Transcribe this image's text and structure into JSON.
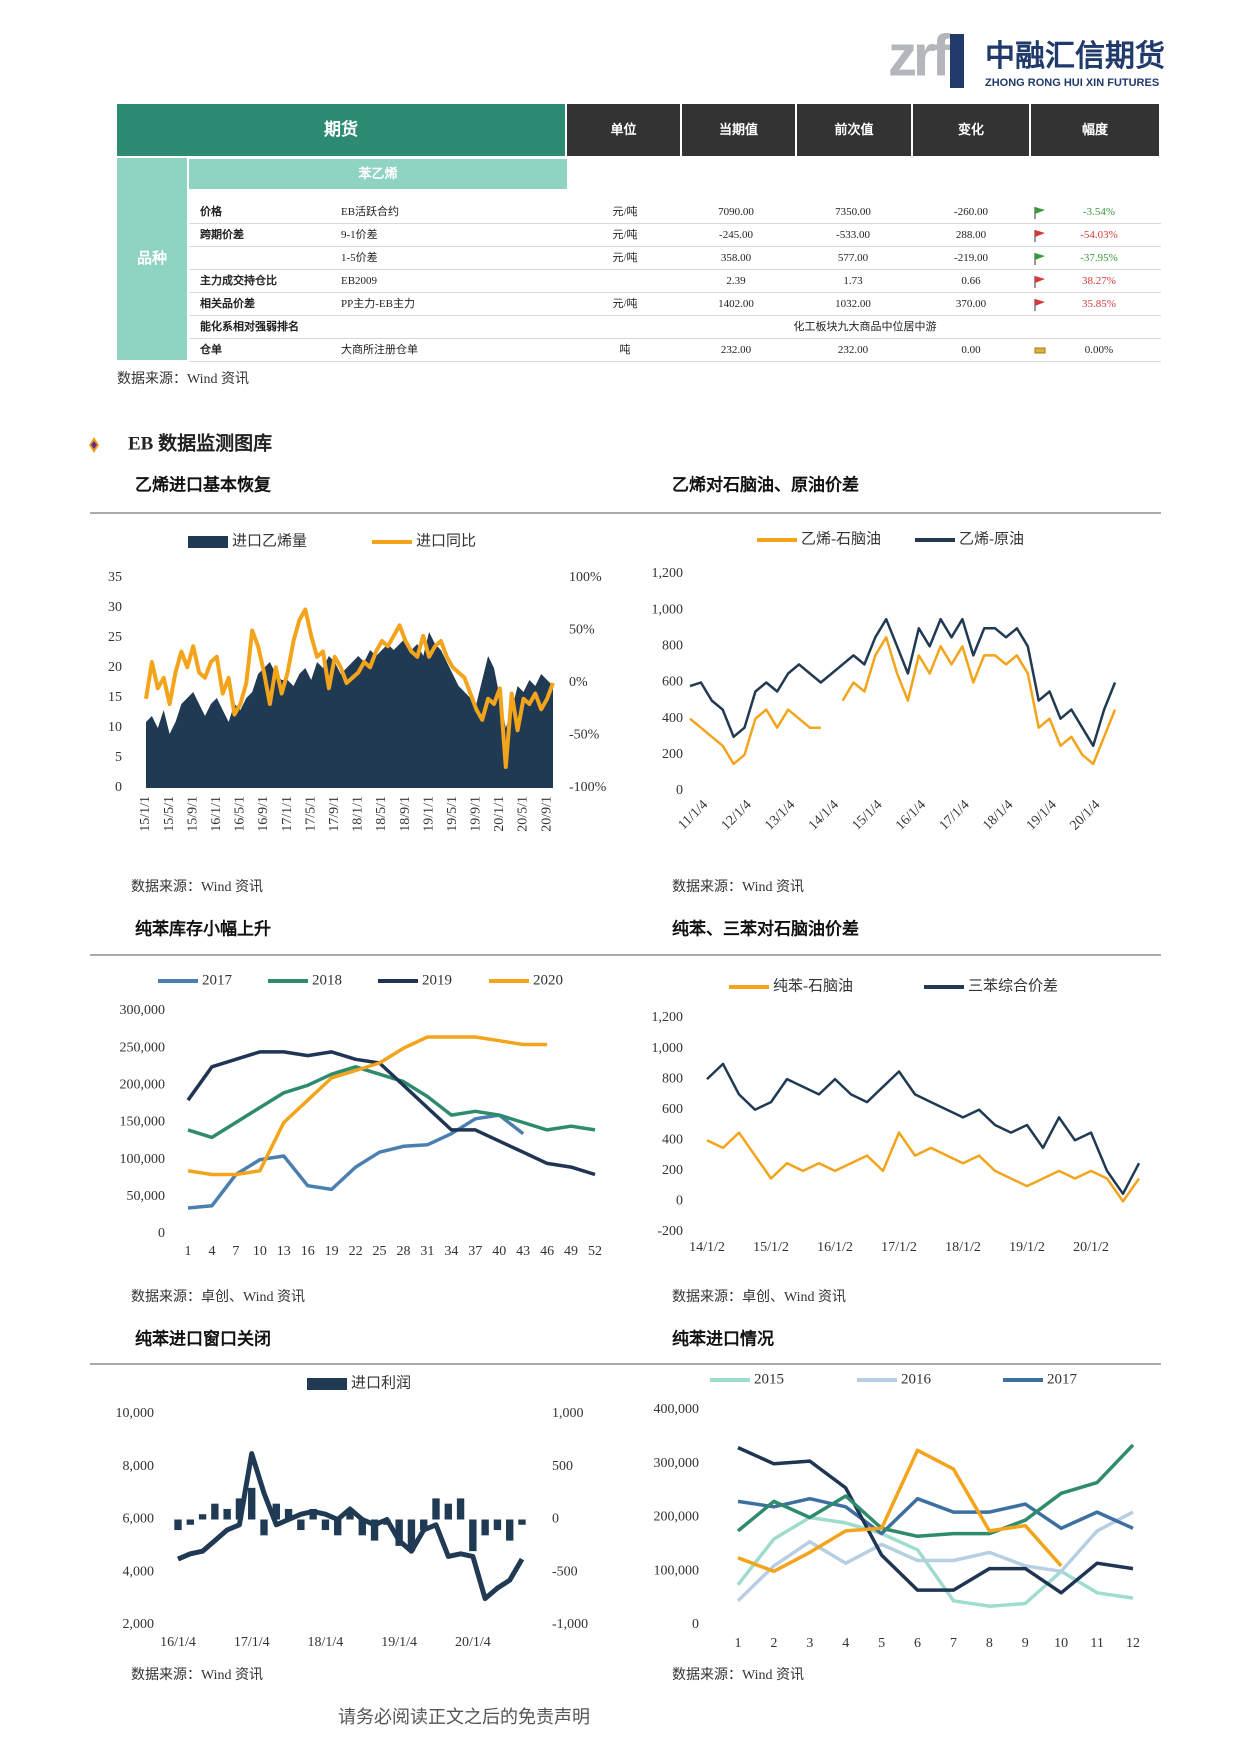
{
  "logo": {
    "mark": "zrf",
    "name": "中融汇信期货",
    "english": "ZHONG RONG HUI XIN FUTURES"
  },
  "table": {
    "header": [
      "期货",
      "单位",
      "当期值",
      "前次值",
      "变化",
      "幅度"
    ],
    "group": "品种",
    "product": "苯乙烯",
    "rows": [
      {
        "label": "价格",
        "item": "EB活跃合约",
        "unit": "元/吨",
        "current": "7090.00",
        "previous": "7350.00",
        "change": "-260.00",
        "pct": "-3.54%"
      },
      {
        "label": "跨期价差",
        "item": "9-1价差",
        "unit": "元/吨",
        "current": "-245.00",
        "previous": "-533.00",
        "change": "288.00",
        "pct": "-54.03%"
      },
      {
        "item": "1-5价差",
        "unit": "元/吨",
        "current": "358.00",
        "previous": "577.00",
        "change": "-219.00",
        "pct": "-37.95%"
      },
      {
        "label": "主力成交持仓比",
        "item": "EB2009",
        "current": "2.39",
        "previous": "1.73",
        "change": "0.66",
        "pct": "38.27%"
      },
      {
        "label": "相关品价差",
        "item": "PP主力-EB主力",
        "unit": "元/吨",
        "current": "1402.00",
        "previous": "1032.00",
        "change": "370.00",
        "pct": "35.85%"
      },
      {
        "label": "能化系相对强弱排名",
        "note": "化工板块九大商品中位居中游"
      },
      {
        "label": "仓单",
        "item": "大商所注册仓单",
        "unit": "吨",
        "current": "232.00",
        "previous": "232.00",
        "change": "0.00",
        "pct": "0.00%"
      }
    ],
    "source": "数据来源：Wind 资讯"
  },
  "section": {
    "title": "EB 数据监测图库"
  },
  "footer": "请务必阅读正文之后的免责声明",
  "chart_data": [
    {
      "type": "combo",
      "title": "乙烯进口基本恢复",
      "source": "数据来源：Wind 资讯",
      "categories": [
        "15/1/1",
        null,
        null,
        null,
        "15/5/1",
        null,
        null,
        null,
        "15/9/1",
        null,
        null,
        null,
        "16/1/1",
        null,
        null,
        null,
        "16/5/1",
        null,
        null,
        null,
        "16/9/1",
        null,
        null,
        null,
        "17/1/1",
        null,
        null,
        null,
        "17/5/1",
        null,
        null,
        null,
        "17/9/1",
        null,
        null,
        null,
        "18/1/1",
        null,
        null,
        null,
        "18/5/1",
        null,
        null,
        null,
        "18/9/1",
        null,
        null,
        null,
        "19/1/1",
        null,
        null,
        null,
        "19/5/1",
        null,
        null,
        null,
        "19/9/1",
        null,
        null,
        null,
        "20/1/1",
        null,
        null,
        null,
        "20/5/1",
        null,
        null,
        null,
        "20/9/1",
        null
      ],
      "ylim": [
        0,
        35
      ],
      "yticks": [
        0,
        5,
        10,
        15,
        20,
        25,
        30,
        35
      ],
      "y2lim": [
        -100,
        100
      ],
      "y2ticks": [
        {
          "value": -100,
          "label": "-100%"
        },
        {
          "value": -50,
          "label": "-50%"
        },
        {
          "value": 0,
          "label": "0%"
        },
        {
          "value": 50,
          "label": "50%"
        },
        {
          "value": 100,
          "label": "100%"
        }
      ],
      "series": [
        {
          "name": "进口乙烯量",
          "type": "area",
          "color": "#203a54",
          "values": [
            11,
            12,
            10,
            13,
            9,
            11,
            14,
            15,
            16,
            14,
            12,
            14,
            15,
            13,
            11,
            14,
            13,
            15,
            16,
            19,
            20,
            21,
            19,
            18,
            18,
            17,
            19,
            20,
            18,
            21,
            20,
            22,
            21,
            19,
            20,
            21,
            22,
            21,
            23,
            22,
            23,
            24,
            23,
            24,
            25,
            23,
            24,
            22,
            26,
            24,
            23,
            21,
            19,
            17,
            16,
            15,
            14,
            18,
            22,
            20,
            15,
            10,
            13,
            17,
            16,
            18,
            17,
            19,
            18,
            17
          ]
        },
        {
          "name": "进口同比",
          "type": "line",
          "axis": "y2",
          "color": "#f3a41b",
          "values": [
            -15,
            20,
            -5,
            5,
            -20,
            10,
            30,
            15,
            35,
            10,
            5,
            20,
            25,
            -10,
            5,
            -30,
            -20,
            0,
            50,
            35,
            10,
            -20,
            15,
            -10,
            10,
            40,
            60,
            70,
            45,
            25,
            30,
            -5,
            25,
            15,
            0,
            5,
            10,
            20,
            15,
            30,
            40,
            35,
            45,
            55,
            40,
            30,
            25,
            45,
            25,
            35,
            40,
            25,
            15,
            10,
            5,
            -10,
            -25,
            -35,
            -15,
            -20,
            -5,
            -80,
            -10,
            -45,
            -15,
            -20,
            -10,
            -25,
            -15,
            0
          ]
        }
      ]
    },
    {
      "type": "line",
      "title": "乙烯对石脑油、原油价差",
      "source": "数据来源：Wind 资讯",
      "categories": [
        "11/1/4",
        null,
        null,
        null,
        "12/1/4",
        null,
        null,
        null,
        "13/1/4",
        null,
        null,
        null,
        "14/1/4",
        null,
        null,
        null,
        "15/1/4",
        null,
        null,
        null,
        "16/1/4",
        null,
        null,
        null,
        "17/1/4",
        null,
        null,
        null,
        "18/1/4",
        null,
        null,
        null,
        "19/1/4",
        null,
        null,
        null,
        "20/1/4",
        null,
        null,
        null
      ],
      "ylim": [
        0,
        1200
      ],
      "yticks": [
        0,
        200,
        400,
        600,
        800,
        {
          "value": 1000,
          "label": "1,000"
        },
        {
          "value": 1200,
          "label": "1,200"
        }
      ],
      "series": [
        {
          "name": "乙烯-石脑油",
          "color": "#f3a41b",
          "values": [
            400,
            350,
            300,
            250,
            150,
            200,
            400,
            450,
            350,
            450,
            400,
            350,
            350,
            null,
            500,
            600,
            550,
            750,
            850,
            650,
            500,
            750,
            650,
            800,
            700,
            800,
            600,
            750,
            750,
            700,
            750,
            650,
            350,
            400,
            250,
            300,
            200,
            150,
            300,
            450
          ]
        },
        {
          "name": "乙烯-原油",
          "color": "#203a54",
          "values": [
            580,
            600,
            500,
            450,
            300,
            350,
            550,
            600,
            550,
            650,
            700,
            650,
            600,
            650,
            700,
            750,
            700,
            850,
            950,
            800,
            650,
            900,
            800,
            950,
            850,
            950,
            750,
            900,
            900,
            850,
            900,
            800,
            500,
            550,
            400,
            450,
            350,
            250,
            450,
            600
          ]
        }
      ]
    },
    {
      "type": "line",
      "title": "纯苯库存小幅上升",
      "source": "数据来源：卓创、Wind 资讯",
      "x": [
        1,
        4,
        7,
        10,
        13,
        16,
        19,
        22,
        25,
        28,
        31,
        34,
        37,
        40,
        43,
        46,
        49,
        52
      ],
      "xlim": [
        1,
        52
      ],
      "xticks": [
        1,
        4,
        7,
        10,
        13,
        16,
        19,
        22,
        25,
        28,
        31,
        34,
        37,
        40,
        43,
        46,
        49,
        52
      ],
      "ylim": [
        0,
        300000
      ],
      "yticks": [
        0,
        {
          "value": 50000,
          "label": "50,000"
        },
        {
          "value": 100000,
          "label": "100,000"
        },
        {
          "value": 150000,
          "label": "150,000"
        },
        {
          "value": 200000,
          "label": "200,000"
        },
        {
          "value": 250000,
          "label": "250,000"
        },
        {
          "value": 300000,
          "label": "300,000"
        }
      ],
      "series": [
        {
          "name": "2017",
          "color": "#4a7fb0",
          "values": [
            35000,
            38000,
            80000,
            100000,
            105000,
            65000,
            60000,
            90000,
            110000,
            118000,
            120000,
            135000,
            155000,
            160000,
            135000,
            null,
            null,
            null
          ]
        },
        {
          "name": "2018",
          "color": "#2e8b6e",
          "values": [
            140000,
            130000,
            150000,
            170000,
            190000,
            200000,
            215000,
            225000,
            215000,
            205000,
            185000,
            160000,
            165000,
            160000,
            150000,
            140000,
            145000,
            140000
          ]
        },
        {
          "name": "2019",
          "color": "#1f3553",
          "values": [
            180000,
            225000,
            235000,
            245000,
            245000,
            240000,
            245000,
            235000,
            230000,
            200000,
            170000,
            140000,
            140000,
            125000,
            110000,
            95000,
            90000,
            80000
          ]
        },
        {
          "name": "2020",
          "color": "#f3a41b",
          "values": [
            85000,
            80000,
            80000,
            85000,
            150000,
            180000,
            210000,
            220000,
            230000,
            250000,
            265000,
            265000,
            265000,
            260000,
            255000,
            255000,
            null,
            null
          ]
        }
      ]
    },
    {
      "type": "line",
      "title": "纯苯、三苯对石脑油价差",
      "source": "数据来源：卓创、Wind 资讯",
      "categories": [
        "14/1/2",
        null,
        null,
        null,
        "15/1/2",
        null,
        null,
        null,
        "16/1/2",
        null,
        null,
        null,
        "17/1/2",
        null,
        null,
        null,
        "18/1/2",
        null,
        null,
        null,
        "19/1/2",
        null,
        null,
        null,
        "20/1/2",
        null,
        null,
        null
      ],
      "ylim": [
        -200,
        1200
      ],
      "yticks": [
        -200,
        0,
        200,
        400,
        600,
        800,
        {
          "value": 1000,
          "label": "1,000"
        },
        {
          "value": 1200,
          "label": "1,200"
        }
      ],
      "series": [
        {
          "name": "纯苯-石脑油",
          "color": "#f3a41b",
          "values": [
            400,
            350,
            450,
            300,
            150,
            250,
            200,
            250,
            200,
            250,
            300,
            200,
            450,
            300,
            350,
            300,
            250,
            300,
            200,
            150,
            100,
            150,
            200,
            150,
            200,
            150,
            0,
            150
          ]
        },
        {
          "name": "三苯综合价差",
          "color": "#203a54",
          "values": [
            800,
            900,
            700,
            600,
            650,
            800,
            750,
            700,
            800,
            700,
            650,
            750,
            850,
            700,
            650,
            600,
            550,
            600,
            500,
            450,
            500,
            350,
            550,
            400,
            450,
            200,
            50,
            250
          ]
        }
      ]
    },
    {
      "type": "combo",
      "title": "纯苯进口窗口关闭",
      "source": "数据来源：Wind 资讯",
      "categories": [
        "16/1/4",
        null,
        null,
        null,
        null,
        null,
        "17/1/4",
        null,
        null,
        null,
        null,
        null,
        "18/1/4",
        null,
        null,
        null,
        null,
        null,
        "19/1/4",
        null,
        null,
        null,
        null,
        null,
        "20/1/4",
        null,
        null,
        null,
        null
      ],
      "ylim": [
        2000,
        10000
      ],
      "yticks": [
        {
          "value": 2000,
          "label": "2,000"
        },
        {
          "value": 4000,
          "label": "4,000"
        },
        {
          "value": 6000,
          "label": "6,000"
        },
        {
          "value": 8000,
          "label": "8,000"
        },
        {
          "value": 10000,
          "label": "10,000"
        }
      ],
      "y2lim": [
        -1000,
        1000
      ],
      "y2ticks": [
        {
          "value": -1000,
          "label": "-1,000"
        },
        -500,
        0,
        500,
        {
          "value": 1000,
          "label": "1,000"
        }
      ],
      "series": [
        {
          "name": "进口利润",
          "type": "bar",
          "axis": "y2",
          "color": "#203a54",
          "values": [
            -100,
            -50,
            50,
            150,
            100,
            200,
            300,
            -150,
            150,
            100,
            -100,
            100,
            -100,
            -150,
            100,
            -150,
            -200,
            -50,
            -250,
            -300,
            -100,
            200,
            150,
            200,
            -300,
            -150,
            -100,
            -200,
            -50
          ]
        },
        {
          "type": "line",
          "color": "#203a54",
          "values": [
            4500,
            4700,
            4800,
            5200,
            5600,
            5800,
            8500,
            7000,
            5800,
            6000,
            6200,
            6300,
            6200,
            6000,
            6400,
            6000,
            5800,
            6000,
            5200,
            4800,
            5600,
            5800,
            4600,
            4700,
            4600,
            3000,
            3400,
            3700,
            4500
          ]
        }
      ]
    },
    {
      "type": "line",
      "title": "纯苯进口情况",
      "source": "数据来源：Wind 资讯",
      "x": [
        1,
        2,
        3,
        4,
        5,
        6,
        7,
        8,
        9,
        10,
        11,
        12
      ],
      "xlim": [
        1,
        12
      ],
      "xticks": [
        1,
        2,
        3,
        4,
        5,
        6,
        7,
        8,
        9,
        10,
        11,
        12
      ],
      "ylim": [
        0,
        400000
      ],
      "yticks": [
        0,
        {
          "value": 100000,
          "label": "100,000"
        },
        {
          "value": 200000,
          "label": "200,000"
        },
        {
          "value": 300000,
          "label": "300,000"
        },
        {
          "value": 400000,
          "label": "400,000"
        }
      ],
      "series": [
        {
          "name": "2015",
          "color": "#9fdcd0",
          "values": [
            75000,
            160000,
            200000,
            190000,
            170000,
            140000,
            45000,
            35000,
            40000,
            100000,
            60000,
            50000
          ]
        },
        {
          "name": "2016",
          "color": "#b7cfe2",
          "values": [
            45000,
            110000,
            155000,
            115000,
            150000,
            120000,
            120000,
            135000,
            110000,
            100000,
            175000,
            210000
          ]
        },
        {
          "name": "2017",
          "color": "#3d6fa1",
          "values": [
            230000,
            220000,
            235000,
            220000,
            170000,
            235000,
            210000,
            210000,
            225000,
            180000,
            210000,
            180000
          ]
        },
        {
          "color": "#1f3553",
          "values": [
            330000,
            300000,
            305000,
            255000,
            130000,
            65000,
            65000,
            105000,
            105000,
            60000,
            115000,
            105000
          ]
        },
        {
          "color": "#2e8b6e",
          "values": [
            175000,
            230000,
            200000,
            240000,
            180000,
            165000,
            170000,
            170000,
            195000,
            245000,
            265000,
            335000
          ]
        },
        {
          "color": "#f3a41b",
          "values": [
            125000,
            100000,
            135000,
            175000,
            180000,
            325000,
            290000,
            175000,
            185000,
            110000,
            null,
            null
          ]
        }
      ]
    }
  ]
}
